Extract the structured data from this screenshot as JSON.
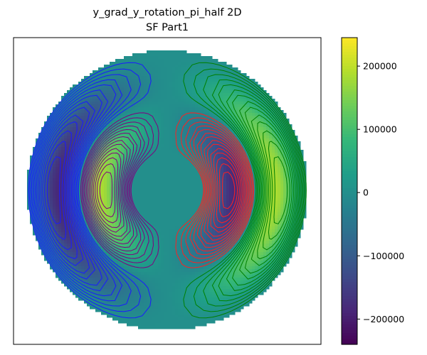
{
  "chart_data": {
    "type": "heatmap",
    "title_line1": "y_grad_y_rotation_pi_half 2D",
    "title_line2": "SF Part1",
    "xlabel": "",
    "ylabel": "",
    "colormap": "viridis",
    "colorbar": {
      "vmin": -240000,
      "vmax": 245000,
      "ticks": [
        {
          "value": 200000,
          "label": "200000"
        },
        {
          "value": 100000,
          "label": "100000"
        },
        {
          "value": 0,
          "label": "0"
        },
        {
          "value": -100000,
          "label": "−100000"
        },
        {
          "value": -200000,
          "label": "−200000"
        }
      ]
    },
    "field": {
      "shape": "annulus",
      "inner_radius_fraction": 0.25,
      "peak_value": 240000,
      "lobes": [
        {
          "side": "left-inner",
          "sign": 1
        },
        {
          "side": "left-outer",
          "sign": -1
        },
        {
          "side": "right-inner",
          "sign": -1
        },
        {
          "side": "right-outer",
          "sign": 1
        }
      ]
    },
    "contour_colors": {
      "left_outer": "#1a1aff",
      "left_inner": "#800080",
      "right_inner": "#ff2020",
      "right_outer": "#008000"
    },
    "contour_levels": 14
  }
}
